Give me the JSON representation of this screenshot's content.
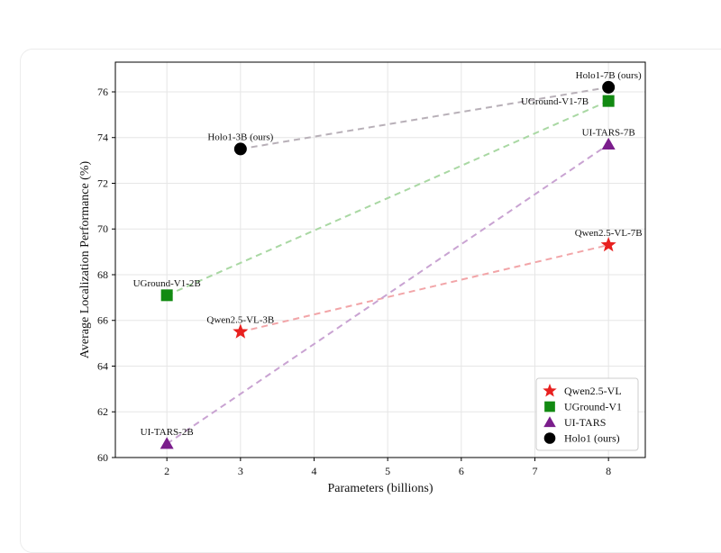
{
  "chart_data": {
    "type": "scatter",
    "xlabel": "Parameters (billions)",
    "ylabel": "Average Localization Performance (%)",
    "xlim": [
      1.3,
      8.5
    ],
    "ylim": [
      60,
      77.3
    ],
    "xticks": [
      2,
      3,
      4,
      5,
      6,
      7,
      8
    ],
    "yticks": [
      60,
      62,
      64,
      66,
      68,
      70,
      72,
      74,
      76
    ],
    "grid": true,
    "legend_position": "bottom-right",
    "series": [
      {
        "name": "Qwen2.5-VL",
        "marker": "star",
        "color": "#e8201f",
        "line_color": "#f2a5a8",
        "points": [
          {
            "x": 3,
            "y": 65.5,
            "label": "Qwen2.5-VL-3B"
          },
          {
            "x": 8,
            "y": 69.3,
            "label": "Qwen2.5-VL-7B"
          }
        ]
      },
      {
        "name": "UGround-V1",
        "marker": "square",
        "color": "#128a12",
        "line_color": "#a9d8a3",
        "points": [
          {
            "x": 2,
            "y": 67.1,
            "label": "UGround-V1-2B"
          },
          {
            "x": 8,
            "y": 75.6,
            "label": "UGround-V1-7B"
          }
        ]
      },
      {
        "name": "UI-TARS",
        "marker": "triangle",
        "color": "#7b1d8c",
        "line_color": "#c9a3d2",
        "points": [
          {
            "x": 2,
            "y": 60.6,
            "label": "UI-TARS-2B"
          },
          {
            "x": 8,
            "y": 73.7,
            "label": "UI-TARS-7B"
          }
        ]
      },
      {
        "name": "Holo1 (ours)",
        "marker": "circle",
        "color": "#000000",
        "line_color": "#b8b0b8",
        "points": [
          {
            "x": 3,
            "y": 73.5,
            "label": "Holo1-3B (ours)"
          },
          {
            "x": 8,
            "y": 76.2,
            "label": "Holo1-7B (ours)"
          }
        ]
      }
    ]
  }
}
